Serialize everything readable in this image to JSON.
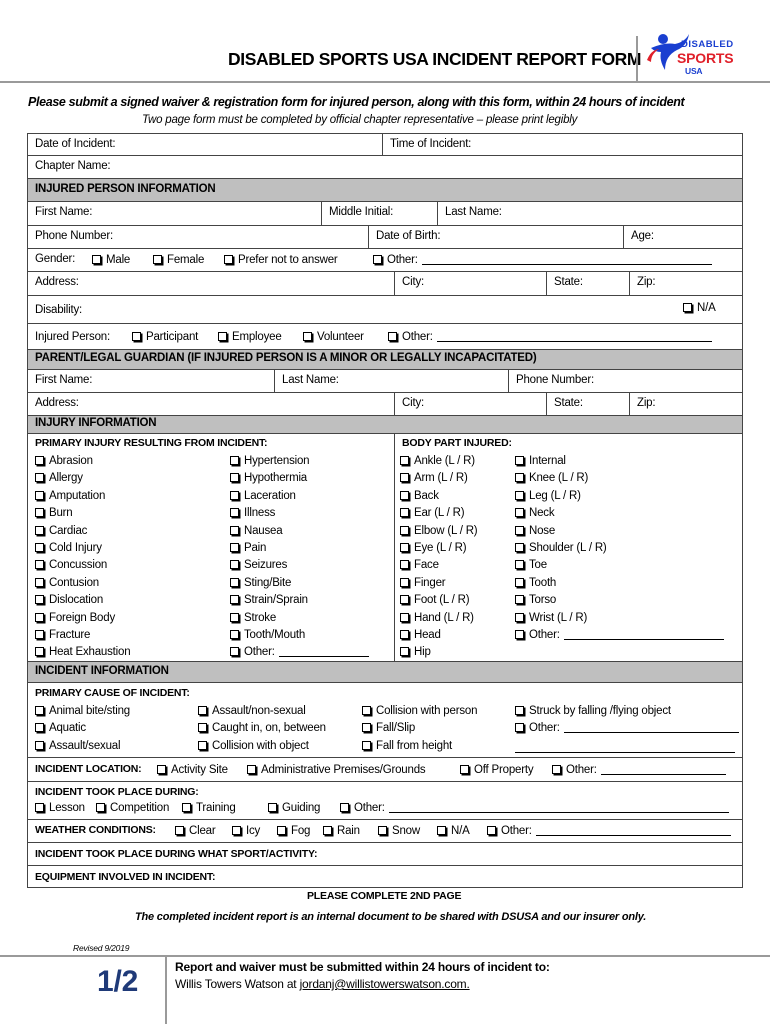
{
  "header": {
    "title": "DISABLED SPORTS USA INCIDENT REPORT FORM",
    "logo": {
      "line1": "DISABLED",
      "line2": "SPORTS",
      "line3": "USA",
      "colors": {
        "blue": "#1a3fd0",
        "red": "#e0202a"
      }
    },
    "instruction": "Please submit a signed waiver & registration form for injured person, along with this form, within 24 hours of incident",
    "subinstruction": "Two page form must be completed by official chapter representative – please print legibly"
  },
  "general": {
    "date": "Date of Incident:",
    "time": "Time of Incident:",
    "chapter": "Chapter Name:"
  },
  "injured": {
    "header": "INJURED PERSON INFORMATION",
    "first": "First Name:",
    "middle": "Middle Initial:",
    "last": "Last Name:",
    "phone": "Phone Number:",
    "dob": "Date of Birth:",
    "age": "Age:",
    "gender_label": "Gender:",
    "gender_options": [
      "Male",
      "Female",
      "Prefer not to answer",
      "Other:"
    ],
    "address": "Address:",
    "city": "City:",
    "state": "State:",
    "zip": "Zip:",
    "disability": "Disability:",
    "na": "N/A",
    "person_label": "Injured Person:",
    "person_options": [
      "Participant",
      "Employee",
      "Volunteer",
      "Other:"
    ]
  },
  "guardian": {
    "header": "PARENT/LEGAL GUARDIAN (IF INJURED PERSON IS A MINOR OR LEGALLY INCAPACITATED)",
    "first": "First Name:",
    "last": "Last Name:",
    "phone": "Phone Number:",
    "address": "Address:",
    "city": "City:",
    "state": "State:",
    "zip": "Zip:"
  },
  "injury": {
    "header": "INJURY INFORMATION",
    "primary_label": "PRIMARY INJURY RESULTING FROM INCIDENT:",
    "body_label": "BODY PART INJURED:",
    "primary_col1": [
      "Abrasion",
      "Allergy",
      "Amputation",
      "Burn",
      "Cardiac",
      "Cold Injury",
      "Concussion",
      "Contusion",
      "Dislocation",
      "Foreign Body",
      "Fracture",
      "Heat Exhaustion"
    ],
    "primary_col2": [
      "Hypertension",
      "Hypothermia",
      "Laceration",
      "Illness",
      "Nausea",
      "Pain",
      "Seizures",
      "Sting/Bite",
      "Strain/Sprain",
      "Stroke",
      "Tooth/Mouth",
      "Other:"
    ],
    "body_col1": [
      "Ankle (L / R)",
      "Arm (L / R)",
      "Back",
      "Ear (L / R)",
      "Elbow (L / R)",
      "Eye (L / R)",
      "Face",
      "Finger",
      "Foot (L / R)",
      "Hand (L / R)",
      "Head",
      "Hip"
    ],
    "body_col2": [
      "Internal",
      "Knee (L / R)",
      "Leg (L / R)",
      "Neck",
      "Nose",
      "Shoulder (L / R)",
      "Toe",
      "Tooth",
      "Torso",
      "Wrist (L / R)",
      "Other:"
    ]
  },
  "incident": {
    "header": "INCIDENT INFORMATION",
    "cause_label": "PRIMARY  CAUSE OF INCIDENT:",
    "cause_cols": [
      [
        "Animal bite/sting",
        "Aquatic",
        "Assault/sexual"
      ],
      [
        "Assault/non-sexual",
        "Caught in, on, between",
        "Collision with object"
      ],
      [
        "Collision with person",
        "Fall/Slip",
        "Fall from height"
      ],
      [
        "Struck by falling /flying object",
        "Other:"
      ]
    ],
    "location_label": "INCIDENT LOCATION:",
    "location_options": [
      "Activity Site",
      "Administrative Premises/Grounds",
      "Off Property",
      "Other:"
    ],
    "during_label": "INCIDENT TOOK PLACE DURING:",
    "during_options": [
      "Lesson",
      "Competition",
      "Training",
      "Guiding",
      "Other:"
    ],
    "weather_label": "WEATHER CONDITIONS:",
    "weather_options": [
      "Clear",
      "Icy",
      "Fog",
      "Rain",
      "Snow",
      "N/A",
      "Other:"
    ],
    "sport_label": "INCIDENT TOOK PLACE DURING WHAT SPORT/ACTIVITY:",
    "equipment_label": "EQUIPMENT INVOLVED IN INCIDENT:"
  },
  "footer": {
    "complete": "PLEASE COMPLETE 2ND PAGE",
    "note": "The completed incident report is an internal document to be shared with DSUSA and our insurer only.",
    "revised": "Revised 9/2019",
    "page": "1/2",
    "submit": "Report and waiver must be submitted within 24 hours of incident to:",
    "recipient": "Willis Towers Watson at ",
    "email": "jordanj@willistowerswatson.com."
  }
}
